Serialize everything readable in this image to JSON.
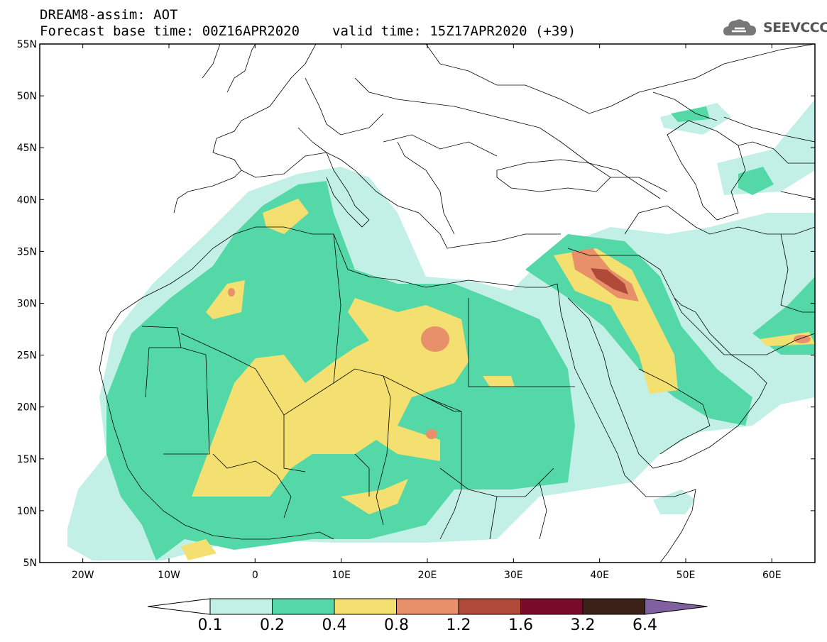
{
  "header": {
    "line1": "DREAM8-assim: AOT",
    "base_time": "Forecast base time: 00Z16APR2020",
    "valid_time": "valid time: 15Z17APR2020 (+39)"
  },
  "logo": {
    "text": "SEEVCCC",
    "icon": "cloud-icon"
  },
  "axes": {
    "lat_labels": [
      "55N",
      "50N",
      "45N",
      "40N",
      "35N",
      "30N",
      "25N",
      "20N",
      "15N",
      "10N",
      "5N"
    ],
    "lon_labels": [
      "20W",
      "10W",
      "0",
      "10E",
      "20E",
      "30E",
      "40E",
      "50E",
      "60E"
    ],
    "lat_range": [
      5,
      55
    ],
    "lon_range": [
      -25,
      65
    ]
  },
  "colorbar": {
    "labels": [
      "0.1",
      "0.2",
      "0.4",
      "0.8",
      "1.2",
      "1.6",
      "3.2",
      "6.4"
    ],
    "colors": [
      "#c2f0e6",
      "#55d8a8",
      "#f3e070",
      "#e8906a",
      "#b04a38",
      "#7a0a2a",
      "#3a2218",
      "#8060a0"
    ],
    "under_color": "#ffffff"
  }
}
